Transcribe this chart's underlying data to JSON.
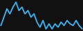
{
  "values": [
    2.0,
    4.5,
    7.0,
    5.5,
    7.5,
    9.0,
    6.5,
    7.5,
    5.5,
    6.5,
    4.5,
    5.5,
    3.0,
    1.5,
    3.5,
    1.0,
    2.5,
    1.0,
    2.5,
    1.5,
    3.0,
    2.0,
    3.5,
    2.5,
    2.0,
    3.5,
    2.0,
    1.0
  ],
  "line_color": "#3daee9",
  "background_color": "#111111",
  "linewidth": 1.4
}
